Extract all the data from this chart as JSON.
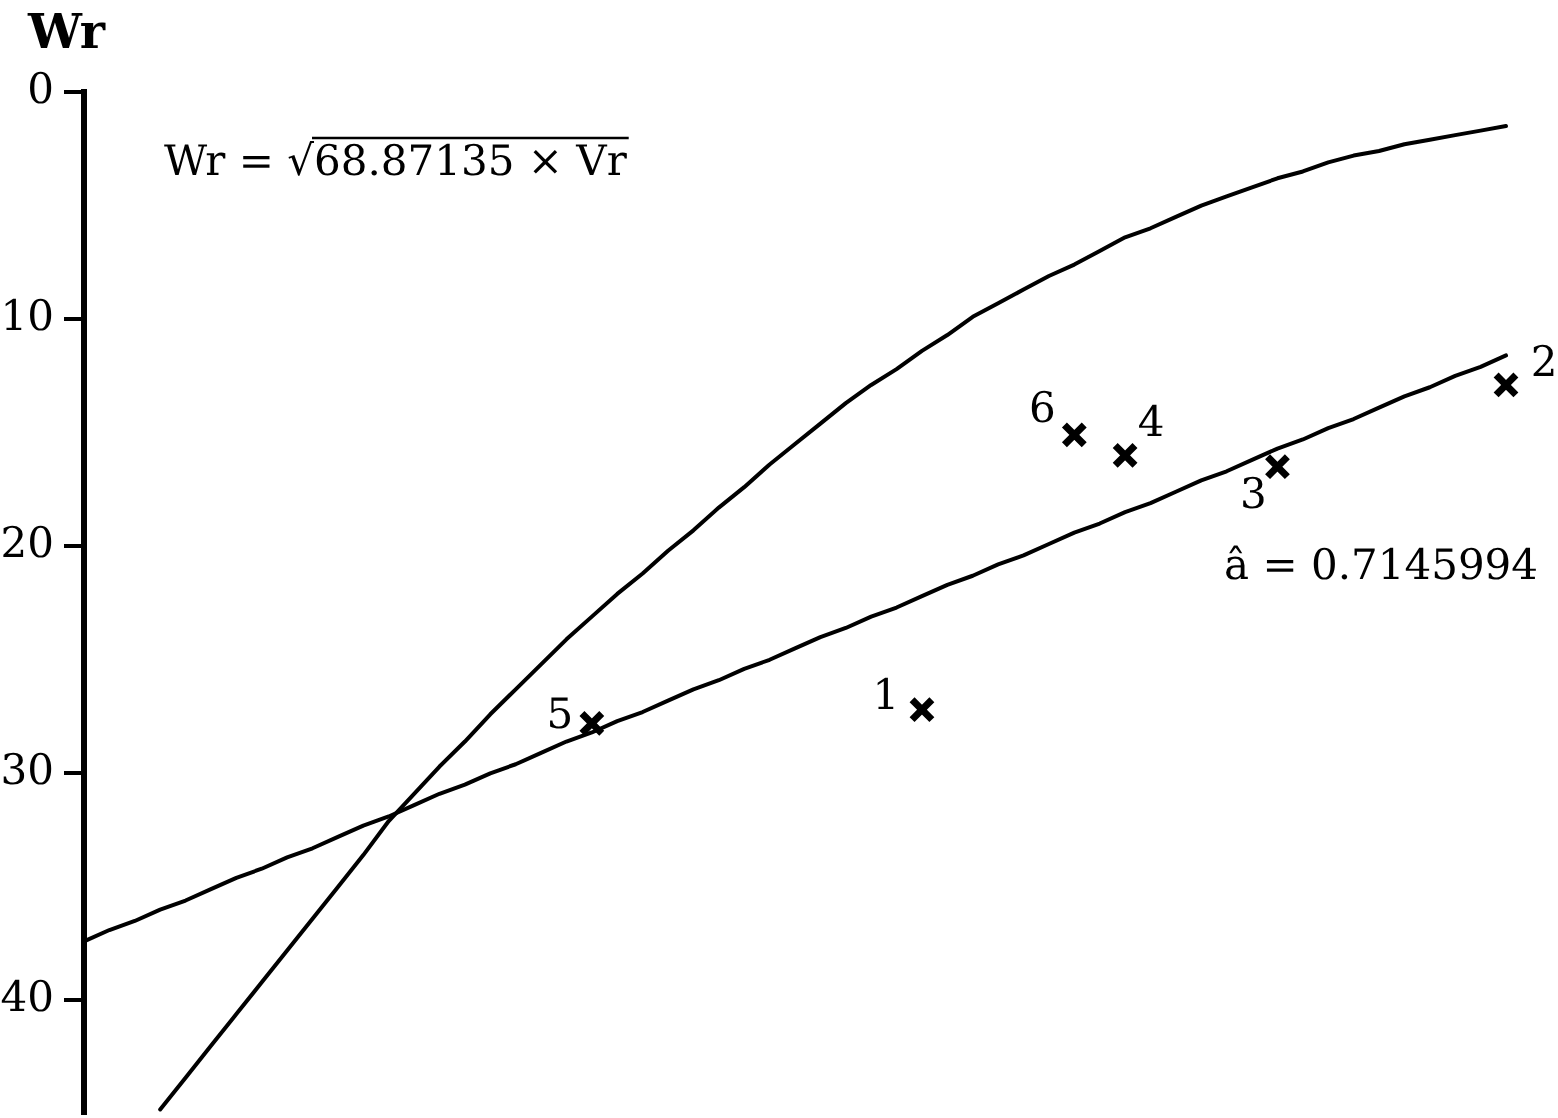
{
  "chart_data": {
    "type": "scatter",
    "ylabel": "Wr",
    "ylim": [
      45,
      0
    ],
    "yticks": [
      0,
      10,
      20,
      30,
      40
    ],
    "tick_labels": "y",
    "grid": false,
    "categories": [
      null,
      null,
      null,
      null,
      null,
      null,
      null,
      null,
      null,
      null,
      null,
      null,
      null,
      null,
      null,
      null,
      null,
      null,
      null,
      null,
      null,
      null,
      null,
      null,
      null,
      null,
      null,
      null,
      null,
      null,
      null,
      null,
      null,
      null,
      null,
      null,
      null,
      null,
      null,
      null,
      null,
      null,
      null,
      null,
      null,
      null,
      null,
      null,
      null,
      null,
      null,
      null,
      null,
      null,
      null,
      null,
      null
    ],
    "series": [
      {
        "type": "line",
        "color": "#000000",
        "marker": "none",
        "values": [
          null,
          null,
          null,
          44.8,
          43.4,
          42.0,
          40.6,
          39.2,
          37.8,
          36.4,
          35.0,
          33.6,
          32.1,
          30.9,
          29.7,
          28.6,
          27.4,
          26.3,
          25.2,
          24.1,
          23.1,
          22.1,
          21.2,
          20.2,
          19.3,
          18.3,
          17.4,
          16.4,
          15.5,
          14.6,
          13.7,
          12.9,
          12.2,
          11.4,
          10.7,
          9.9,
          9.3,
          8.7,
          8.1,
          7.6,
          7.0,
          6.4,
          6.0,
          5.5,
          5.0,
          4.6,
          4.2,
          3.8,
          3.5,
          3.1,
          2.8,
          2.6,
          2.3,
          2.1,
          1.9,
          1.7,
          1.5
        ]
      },
      {
        "type": "line",
        "color": "#000000",
        "marker": "none",
        "values": [
          37.4,
          36.9,
          36.5,
          36.0,
          35.6,
          35.1,
          34.6,
          34.2,
          33.7,
          33.3,
          32.8,
          32.3,
          31.9,
          31.4,
          30.9,
          30.5,
          30.0,
          29.6,
          29.1,
          28.6,
          28.2,
          27.7,
          27.3,
          26.8,
          26.3,
          25.9,
          25.4,
          25.0,
          24.5,
          24.0,
          23.6,
          23.1,
          22.7,
          22.2,
          21.7,
          21.3,
          20.8,
          20.4,
          19.9,
          19.4,
          19.0,
          18.5,
          18.1,
          17.6,
          17.1,
          16.7,
          16.2,
          15.7,
          15.3,
          14.8,
          14.4,
          13.9,
          13.4,
          13.0,
          12.5,
          12.1,
          11.6
        ]
      },
      {
        "color": "#000000",
        "marker": "cross",
        "values": [
          null,
          null,
          null,
          null,
          null,
          null,
          null,
          null,
          null,
          null,
          null,
          null,
          null,
          null,
          null,
          null,
          null,
          null,
          null,
          null,
          27.8,
          null,
          null,
          null,
          null,
          null,
          null,
          null,
          null,
          null,
          null,
          null,
          null,
          27.2,
          null,
          null,
          null,
          null,
          null,
          15.1,
          null,
          16.0,
          null,
          null,
          null,
          null,
          null,
          16.5,
          null,
          null,
          null,
          null,
          null,
          null,
          null,
          null,
          12.9
        ]
      }
    ],
    "annotations": [
      "Wr = √68.87135 × Vr",
      "â = 0.7145994",
      "5",
      "1",
      "6",
      "4",
      "3",
      "2"
    ]
  }
}
